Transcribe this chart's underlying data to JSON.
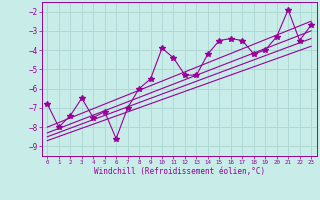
{
  "xlabel": "Windchill (Refroidissement éolien,°C)",
  "background_color": "#c8ece8",
  "grid_color": "#b0d8d4",
  "line_color": "#990099",
  "xlim": [
    -0.5,
    23.5
  ],
  "ylim": [
    -9.5,
    -1.5
  ],
  "yticks": [
    -9,
    -8,
    -7,
    -6,
    -5,
    -4,
    -3,
    -2
  ],
  "xticks": [
    0,
    1,
    2,
    3,
    4,
    5,
    6,
    7,
    8,
    9,
    10,
    11,
    12,
    13,
    14,
    15,
    16,
    17,
    18,
    19,
    20,
    21,
    22,
    23
  ],
  "x_data": [
    0,
    1,
    2,
    3,
    4,
    5,
    6,
    7,
    8,
    9,
    10,
    11,
    12,
    13,
    14,
    15,
    16,
    17,
    18,
    19,
    20,
    21,
    22,
    23
  ],
  "y_data": [
    -6.8,
    -8.0,
    -7.4,
    -6.5,
    -7.5,
    -7.2,
    -8.6,
    -7.0,
    -6.0,
    -5.5,
    -3.9,
    -4.4,
    -5.3,
    -5.3,
    -4.2,
    -3.5,
    -3.4,
    -3.5,
    -4.2,
    -4.0,
    -3.3,
    -1.9,
    -3.5,
    -2.7
  ],
  "trend_lines": [
    {
      "x0": 0,
      "y0": -8.0,
      "x1": 23,
      "y1": -2.5
    },
    {
      "x0": 0,
      "y0": -8.3,
      "x1": 23,
      "y1": -3.0
    },
    {
      "x0": 0,
      "y0": -8.5,
      "x1": 23,
      "y1": -3.4
    },
    {
      "x0": 0,
      "y0": -8.7,
      "x1": 23,
      "y1": -3.8
    }
  ]
}
